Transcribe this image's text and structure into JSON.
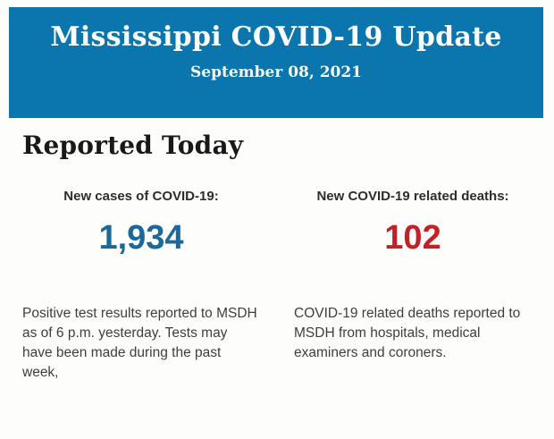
{
  "header": {
    "title": "Mississippi COVID-19 Update",
    "date": "September 08, 2021",
    "background_color": "#0a76ad",
    "text_color": "#fbfdfc"
  },
  "section": {
    "heading": "Reported Today"
  },
  "stats": {
    "cases": {
      "label": "New cases of COVID-19:",
      "value": "1,934",
      "value_color": "#1b689a",
      "description": "Positive test results reported to MSDH as of 6 p.m. yesterday. Tests may have been made during the past week,"
    },
    "deaths": {
      "label": "New COVID-19 related deaths:",
      "value": "102",
      "value_color": "#c42127",
      "description": "COVID-19 related deaths reported to MSDH from hospitals, medical examiners and coroners."
    }
  }
}
